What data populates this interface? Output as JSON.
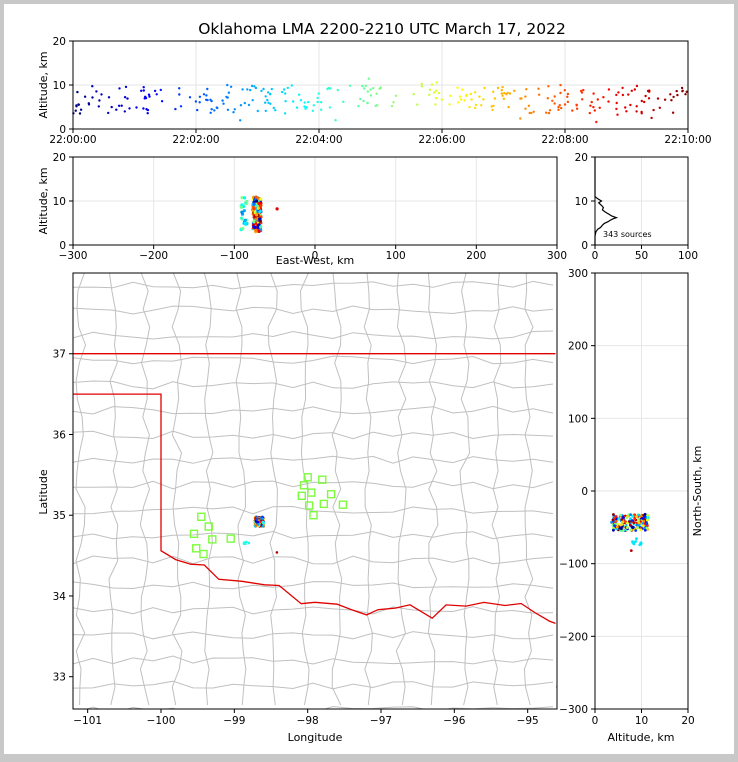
{
  "title": "Oklahoma LMA 2200-2210 UTC March 17, 2022",
  "source_count_text": "343 sources",
  "colors": {
    "state_border": "#e00000",
    "county_lines": "#c0c0c0",
    "station": "#7cfc3c",
    "grid": "#e6e6e6",
    "frame_bg": "#c8c8c8"
  },
  "chart_data": [
    {
      "id": "time_height",
      "type": "scatter",
      "xlabel": "",
      "ylabel": "Altitude, km",
      "xlim": [
        "22:00:00",
        "22:10:00"
      ],
      "ylim": [
        0,
        20
      ],
      "x_ticks": [
        "22:00:00",
        "22:02:00",
        "22:04:00",
        "22:06:00",
        "22:08:00",
        "22:10:00"
      ],
      "y_ticks": [
        "0",
        "10",
        "20"
      ],
      "color_by": "time (blue→red)",
      "grid": true
    },
    {
      "id": "ew_height",
      "type": "scatter",
      "xlabel": "East-West, km",
      "ylabel": "Altitude, km",
      "xlim": [
        -300,
        300
      ],
      "ylim": [
        0,
        20
      ],
      "x_ticks": [
        "−300",
        "−200",
        "−100",
        "0",
        "100",
        "200",
        "300"
      ],
      "y_ticks": [
        "0",
        "10",
        "20"
      ],
      "cluster": {
        "x_range": [
          -95,
          -62
        ],
        "outlier_x": -47,
        "z_range": [
          2,
          12
        ]
      },
      "grid": true
    },
    {
      "id": "height_histogram",
      "type": "line",
      "xlim": [
        0,
        100
      ],
      "ylim": [
        0,
        20
      ],
      "x_ticks": [
        "0",
        "50",
        "100"
      ],
      "y_ticks": [
        "0",
        "10",
        "20"
      ],
      "points": [
        [
          0,
          0
        ],
        [
          0,
          2
        ],
        [
          1,
          3
        ],
        [
          3,
          3.6
        ],
        [
          6,
          4
        ],
        [
          8,
          4.5
        ],
        [
          10,
          4.9
        ],
        [
          14,
          5.3
        ],
        [
          17,
          5.7
        ],
        [
          20,
          6
        ],
        [
          23,
          6.2
        ],
        [
          18,
          6.6
        ],
        [
          15,
          7
        ],
        [
          11,
          7.5
        ],
        [
          8,
          8
        ],
        [
          9,
          8.5
        ],
        [
          7,
          9
        ],
        [
          4,
          9.6
        ],
        [
          7,
          10
        ],
        [
          3,
          10.5
        ],
        [
          0,
          11
        ],
        [
          0,
          20
        ]
      ],
      "grid": true
    },
    {
      "id": "plan_view",
      "type": "scatter",
      "xlabel": "Longitude",
      "ylabel": "Latitude",
      "xlim": [
        -101.2,
        -94.6
      ],
      "ylim": [
        32.6,
        38.0
      ],
      "x_ticks": [
        "−101",
        "−100",
        "−99",
        "−98",
        "−97",
        "−96",
        "−95"
      ],
      "y_ticks": [
        "33",
        "34",
        "35",
        "36",
        "37"
      ],
      "stations": [
        {
          "lon": -99.45,
          "lat": 34.98
        },
        {
          "lon": -99.35,
          "lat": 34.86
        },
        {
          "lon": -99.55,
          "lat": 34.77
        },
        {
          "lon": -99.3,
          "lat": 34.7
        },
        {
          "lon": -99.52,
          "lat": 34.59
        },
        {
          "lon": -99.42,
          "lat": 34.52
        },
        {
          "lon": -99.05,
          "lat": 34.71
        },
        {
          "lon": -98.0,
          "lat": 35.47
        },
        {
          "lon": -98.05,
          "lat": 35.37
        },
        {
          "lon": -98.08,
          "lat": 35.24
        },
        {
          "lon": -97.95,
          "lat": 35.28
        },
        {
          "lon": -97.8,
          "lat": 35.44
        },
        {
          "lon": -97.68,
          "lat": 35.26
        },
        {
          "lon": -97.78,
          "lat": 35.14
        },
        {
          "lon": -97.98,
          "lat": 35.12
        },
        {
          "lon": -97.92,
          "lat": 35.0
        },
        {
          "lon": -97.52,
          "lat": 35.13
        }
      ],
      "lightning_cluster": {
        "lon_range": [
          -98.72,
          -98.6
        ],
        "lat_range": [
          34.86,
          34.98
        ]
      },
      "grid": false
    },
    {
      "id": "ns_height",
      "type": "scatter",
      "xlabel": "Altitude, km",
      "ylabel": "North-South, km",
      "xlim": [
        0,
        20
      ],
      "ylim": [
        -300,
        300
      ],
      "x_ticks": [
        "0",
        "10",
        "20"
      ],
      "y_ticks": [
        "−300",
        "−200",
        "−100",
        "0",
        "100",
        "200",
        "300"
      ],
      "cluster": {
        "ns_range": [
          -55,
          -32
        ],
        "z_range": [
          3,
          12
        ]
      },
      "grid": true
    }
  ]
}
